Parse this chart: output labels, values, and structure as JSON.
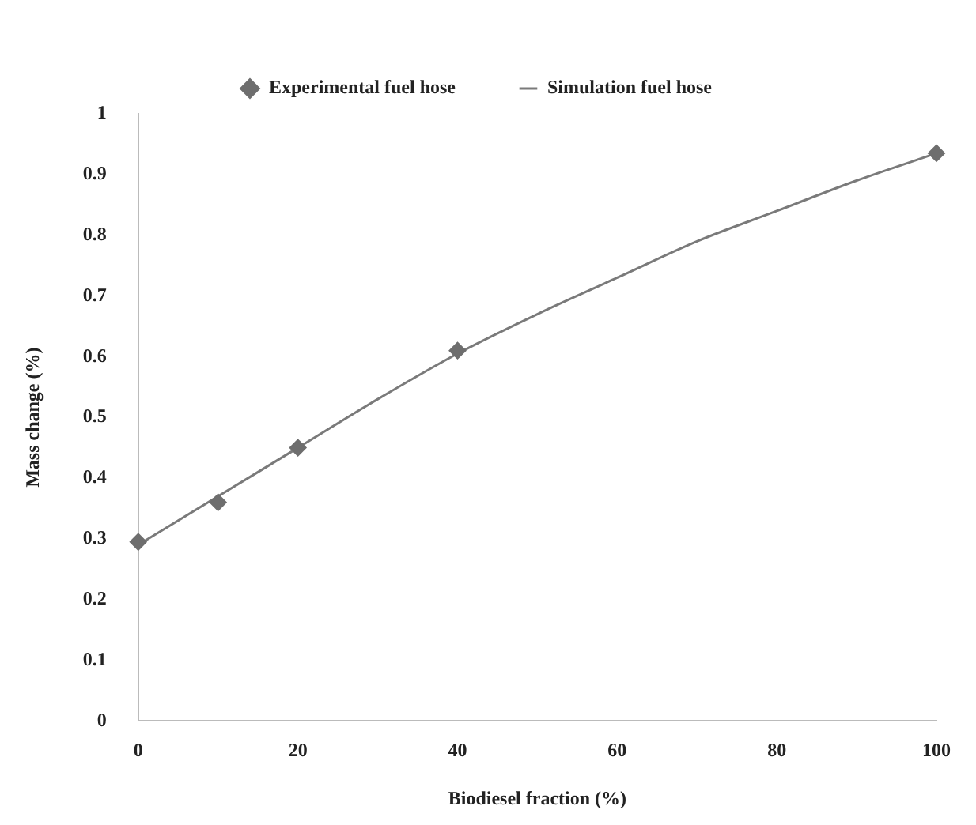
{
  "chart_data": {
    "type": "scatter",
    "xlabel": "Biodiesel fraction (%)",
    "ylabel": "Mass change (%)",
    "xlim": [
      0,
      100
    ],
    "xticks": [
      0,
      20,
      40,
      60,
      80,
      100
    ],
    "ylim": [
      0,
      1
    ],
    "yticks": [
      0,
      0.1,
      0.2,
      0.3,
      0.4,
      0.5,
      0.6,
      0.7,
      0.8,
      0.9,
      1
    ],
    "grid": false,
    "legend": "top",
    "series": [
      {
        "name": "Experimental fuel hose",
        "type": "scatter",
        "marker": "diamond",
        "color": "#6e6e6e",
        "x": [
          0,
          10,
          20,
          40,
          100
        ],
        "values": [
          0.295,
          0.36,
          0.45,
          0.61,
          0.935
        ]
      },
      {
        "name": "Simulation fuel hose",
        "type": "line",
        "marker": "none",
        "color": "#7a7a7a",
        "x": [
          0,
          10,
          20,
          30,
          40,
          50,
          60,
          70,
          80,
          90,
          100
        ],
        "values": [
          0.29,
          0.37,
          0.45,
          0.53,
          0.605,
          0.67,
          0.73,
          0.79,
          0.84,
          0.89,
          0.935
        ]
      }
    ]
  }
}
